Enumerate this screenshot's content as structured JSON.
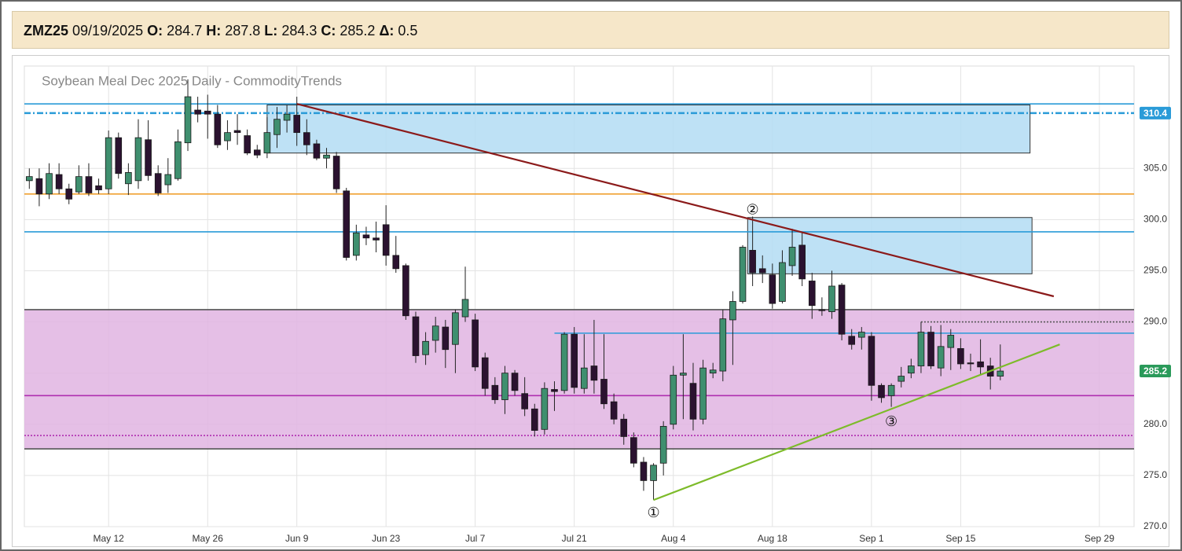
{
  "header": {
    "symbol": "ZMZ25",
    "date": "09/19/2025",
    "fields": [
      {
        "label": "O:",
        "value": 284.7
      },
      {
        "label": "H:",
        "value": 287.8
      },
      {
        "label": "L:",
        "value": 284.3
      },
      {
        "label": "C:",
        "value": 285.2
      },
      {
        "label": "Δ:",
        "value": 0.5
      }
    ]
  },
  "chart_data": {
    "type": "candlestick",
    "title": "Soybean Meal Dec 2025 Daily - CommodityTrends",
    "categories": [
      null,
      null,
      null,
      null,
      null,
      null,
      null,
      null,
      "May 12",
      null,
      null,
      null,
      null,
      null,
      null,
      null,
      null,
      null,
      "May 26",
      null,
      null,
      null,
      null,
      null,
      null,
      null,
      null,
      "Jun 9",
      null,
      null,
      null,
      null,
      null,
      null,
      null,
      null,
      "Jun 23",
      null,
      null,
      null,
      null,
      null,
      null,
      null,
      null,
      "Jul 7",
      null,
      null,
      null,
      null,
      null,
      null,
      null,
      null,
      null,
      "Jul 21",
      null,
      null,
      null,
      null,
      null,
      null,
      null,
      null,
      null,
      "Aug 4",
      null,
      null,
      null,
      null,
      null,
      null,
      null,
      null,
      null,
      "Aug 18",
      null,
      null,
      null,
      null,
      null,
      null,
      null,
      null,
      null,
      "Sep 1",
      null,
      null,
      null,
      null,
      null,
      null,
      null,
      null,
      "Sep 15",
      null,
      null,
      null,
      null,
      null,
      null,
      null,
      null,
      null,
      null,
      null,
      null,
      null,
      "Sep 29",
      null,
      null,
      null
    ],
    "open": [
      303.8,
      304,
      302.5,
      304.4,
      303,
      302.7,
      304.2,
      303.3,
      303,
      308,
      303.5,
      303.8,
      307.8,
      304.5,
      303.4,
      304,
      307.5,
      310.7,
      310.6,
      310.3,
      307.7,
      308.7,
      308.2,
      306.8,
      306.5,
      308.3,
      309.7,
      310.2,
      308.5,
      307.4,
      306,
      306.2,
      302.8,
      296.5,
      298.5,
      298.2,
      299.5,
      296.5,
      295.5,
      290.5,
      286.8,
      288.2,
      289.5,
      287.8,
      290.5,
      290.2,
      286.5,
      283.8,
      282.4,
      285,
      283,
      281.5,
      279.5,
      283.4,
      283.3,
      288.8,
      283.5,
      285.7,
      284.4,
      282.2,
      280.5,
      278.7,
      276.3,
      274.5,
      276.2,
      280,
      284.8,
      284,
      280.5,
      285,
      285.2,
      290.2,
      292,
      297,
      295.2,
      294.6,
      292,
      295.5,
      297.5,
      294,
      291.2,
      291,
      293.6,
      288.6,
      288.5,
      288.6,
      283.8,
      282.8,
      284.2,
      285,
      285.7,
      289,
      285.5,
      287.5,
      287.4,
      286,
      286.1,
      285.7,
      284.7,
      null,
      null,
      null,
      null,
      null,
      null,
      null,
      null,
      null,
      null,
      null,
      null,
      null
    ],
    "high": [
      305,
      305,
      305.5,
      305.5,
      303.5,
      305.3,
      305.5,
      304,
      308.7,
      308.5,
      305.5,
      309.8,
      309.7,
      305.3,
      306,
      308.8,
      313.7,
      312,
      312.2,
      311.2,
      309.7,
      310.3,
      308.8,
      307.3,
      310,
      311,
      311.2,
      312,
      309.8,
      307.8,
      307,
      306.6,
      303.1,
      299.5,
      299.3,
      299.8,
      301.4,
      298.4,
      295.7,
      291,
      289,
      290.5,
      290.2,
      291.2,
      295.4,
      290.8,
      287,
      284.6,
      285.7,
      285.3,
      284.6,
      282,
      284.1,
      284.2,
      289,
      289.5,
      288.8,
      290.2,
      288.8,
      283,
      281,
      279.2,
      276.8,
      276.2,
      280.3,
      285.7,
      288.8,
      286,
      286.3,
      286,
      291.2,
      293,
      297.5,
      300.3,
      296.5,
      295.7,
      297,
      299.1,
      298.7,
      294.8,
      292.4,
      295,
      293.8,
      289.3,
      289.5,
      289,
      284,
      284,
      285.6,
      286.4,
      290,
      289.6,
      289.7,
      289.3,
      288.4,
      286.9,
      288.3,
      286.5,
      287.8,
      null,
      null,
      null,
      null,
      null,
      null,
      null,
      null,
      null,
      null,
      null,
      null,
      null
    ],
    "low": [
      303,
      301.3,
      302,
      302.5,
      301.5,
      302.5,
      302.3,
      302.5,
      302.5,
      304,
      302.4,
      303,
      303.8,
      302.3,
      302.6,
      303.8,
      306.7,
      309.5,
      307.9,
      307,
      306.8,
      307.3,
      306.3,
      306,
      306,
      307,
      308.5,
      307.2,
      306.3,
      305.8,
      305,
      302.6,
      296,
      296,
      297.5,
      296.8,
      295.5,
      294.8,
      290.2,
      286,
      285.8,
      287,
      285.5,
      285,
      290,
      285.2,
      282.8,
      282,
      281,
      282.8,
      280.8,
      278.8,
      279,
      281.3,
      283,
      283,
      283,
      283,
      281.5,
      280,
      278,
      275.8,
      273.5,
      272.6,
      275,
      279.5,
      280.5,
      279.4,
      280,
      284.5,
      284.2,
      285.8,
      291.8,
      293.5,
      293.8,
      291.3,
      291.8,
      294.5,
      293.5,
      290.3,
      290.6,
      290.3,
      288.2,
      287.3,
      287.3,
      282.3,
      282.1,
      281.7,
      283.6,
      284.5,
      285,
      285.4,
      284.7,
      285.3,
      285.4,
      285.2,
      284.8,
      283.4,
      284.3,
      null,
      null,
      null,
      null,
      null,
      null,
      null,
      null,
      null,
      null,
      null,
      null,
      null
    ],
    "close": [
      304.2,
      302.5,
      304.5,
      303,
      302,
      304.2,
      302.6,
      302.9,
      308,
      304.5,
      304.6,
      308,
      304.3,
      302.6,
      304.4,
      307.6,
      312,
      310.3,
      310.3,
      307.3,
      308.5,
      308.5,
      306.5,
      306.3,
      308.5,
      309.8,
      310.3,
      308.5,
      307.3,
      306,
      306.3,
      303,
      296.3,
      298.7,
      298.2,
      298,
      296.5,
      295.2,
      290.6,
      286.7,
      288.1,
      289.6,
      287.3,
      290.9,
      292.2,
      285.6,
      283.5,
      282.4,
      285,
      283.3,
      281.5,
      279.4,
      283.5,
      283.2,
      288.8,
      283.6,
      285.5,
      284.3,
      282,
      280.5,
      278.8,
      276.2,
      274.5,
      276,
      279.8,
      284.8,
      285,
      280.5,
      285.5,
      285.3,
      290.3,
      292,
      297.3,
      294.8,
      294.8,
      291.8,
      295.8,
      297.3,
      294.2,
      291.6,
      291.1,
      293.5,
      288.8,
      287.8,
      289,
      283.8,
      282.6,
      283.8,
      284.7,
      285.7,
      289,
      285.7,
      287.6,
      288.7,
      285.9,
      285.9,
      285.6,
      284.7,
      285.2,
      null,
      null,
      null,
      null,
      null,
      null,
      null,
      null,
      null,
      null,
      null,
      null,
      null
    ],
    "up_color": "#3f8f6f",
    "down_color": "#2b1230",
    "ylim": [
      270,
      315
    ],
    "yticks": [
      {
        "value": 270,
        "label": "270.0"
      },
      {
        "value": 275,
        "label": "275.0"
      },
      {
        "value": 280,
        "label": "280.0"
      },
      {
        "value": 285,
        "label": "285.0"
      },
      {
        "value": 290,
        "label": "290.0"
      },
      {
        "value": 295,
        "label": "295.0"
      },
      {
        "value": 300,
        "label": "300.0"
      },
      {
        "value": 305,
        "label": "305.0"
      }
    ],
    "grid": true,
    "zones": [
      {
        "ylim": [
          277.6,
          291.2
        ],
        "color": "#e0b4e2"
      },
      {
        "ylim": [
          306.5,
          311.2
        ],
        "xlim": [
          24,
          101
        ],
        "color": "#b3dcf3"
      },
      {
        "ylim": [
          294.7,
          300.2
        ],
        "xlim": [
          72.5,
          101.2
        ],
        "color": "#b3dcf3"
      }
    ],
    "levels": [
      {
        "value": 311.3,
        "color": "#2a9bd8",
        "style": "solid"
      },
      {
        "value": 310.4,
        "color": "#2a9bd8",
        "style": "dashdot",
        "tag": true
      },
      {
        "value": 302.5,
        "color": "#f0a030",
        "style": "solid"
      },
      {
        "value": 298.8,
        "color": "#2a9bd8",
        "style": "solid"
      },
      {
        "value": 288.9,
        "color": "#2a9bd8",
        "style": "solid",
        "from": 53
      },
      {
        "value": 290,
        "color": "#555555",
        "style": "dotted",
        "from": 90
      },
      {
        "value": 282.8,
        "color": "#b02fb0",
        "style": "solid"
      },
      {
        "value": 278.9,
        "color": "#b02fb0",
        "style": "dotted"
      },
      {
        "value": 291.2,
        "color": "#555555",
        "style": "solid"
      },
      {
        "value": 277.6,
        "color": "#555555",
        "style": "solid"
      }
    ],
    "trendlines": [
      {
        "x": [
          27,
          103.4
        ],
        "y": [
          311.3,
          292.5
        ],
        "color": "#8b1a1a"
      },
      {
        "x": [
          63,
          104
        ],
        "y": [
          272.6,
          287.8
        ],
        "color": "#7dbb2a"
      }
    ],
    "annotations": [
      {
        "text": "①",
        "x": 63,
        "y": 271.3
      },
      {
        "text": "②",
        "x": 73,
        "y": 300.9
      },
      {
        "text": "③",
        "x": 87,
        "y": 280.2
      }
    ],
    "last_tag_color": "#2a9a5a"
  }
}
